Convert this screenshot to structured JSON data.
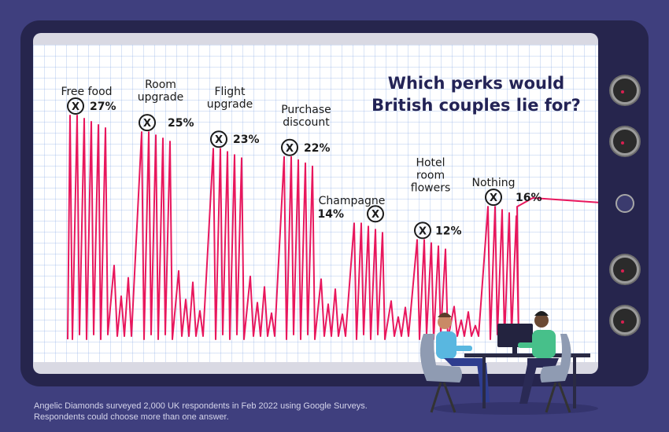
{
  "title_lines": [
    "Which perks would",
    "British couples lie for?"
  ],
  "footnote": {
    "line1": "Angelic Diamonds surveyed 2,000 UK respondents in Feb 2022 using Google Surveys.",
    "line2": "Respondents could choose more than one answer."
  },
  "colors": {
    "line": "#e8175d",
    "title": "#232356",
    "label": "#1a1a1a"
  },
  "chart_data": {
    "type": "bar",
    "categories": [
      "Free food",
      "Room upgrade",
      "Flight upgrade",
      "Purchase discount",
      "Champagne",
      "Hotel room flowers",
      "Nothing"
    ],
    "values": [
      27,
      25,
      23,
      22,
      14,
      12,
      16
    ],
    "value_labels": [
      "27%",
      "25%",
      "23%",
      "22%",
      "14%",
      "12%",
      "16%"
    ],
    "label_lines": [
      [
        "Free food"
      ],
      [
        "Room",
        "upgrade"
      ],
      [
        "Flight",
        "upgrade"
      ],
      [
        "Purchase",
        "discount"
      ],
      [
        "Champagne"
      ],
      [
        "Hotel",
        "room",
        "flowers"
      ],
      [
        "Nothing"
      ]
    ],
    "title": "Which perks would British couples lie for?",
    "xlabel": "",
    "ylabel": "",
    "ylim": [
      0,
      27
    ],
    "grid": true
  }
}
